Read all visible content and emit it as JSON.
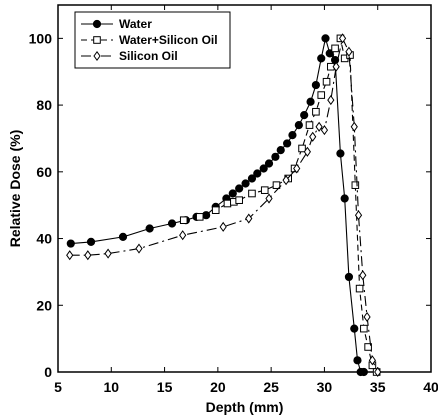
{
  "chart_data": {
    "type": "line",
    "title": "",
    "xlabel": "Depth (mm)",
    "ylabel": "Relative Dose (%)",
    "xlim": [
      5,
      40
    ],
    "ylim": [
      0,
      110
    ],
    "xticks": [
      5,
      10,
      15,
      20,
      25,
      30,
      35,
      40
    ],
    "yticks": [
      0,
      20,
      40,
      60,
      80,
      100
    ],
    "grid": false,
    "legend_position": "top-left",
    "series": [
      {
        "name": "Water",
        "line_style": "solid",
        "marker": "filled-circle",
        "x": [
          6.2,
          8.1,
          11.1,
          13.6,
          15.7,
          17.0,
          18.0,
          18.9,
          19.8,
          20.8,
          21.4,
          22.0,
          22.6,
          23.2,
          23.7,
          24.3,
          24.8,
          25.4,
          25.9,
          26.5,
          27.0,
          27.6,
          28.1,
          28.7,
          29.2,
          29.7,
          30.1,
          30.5,
          31.0,
          31.5,
          31.9,
          32.3,
          32.8,
          33.1,
          33.4,
          33.7
        ],
        "y": [
          38.5,
          39,
          40.5,
          43,
          44.5,
          45.5,
          46.5,
          47,
          49.5,
          52,
          53.5,
          55,
          56.5,
          58,
          59.5,
          61,
          62.5,
          64.5,
          66.5,
          68.5,
          71,
          74,
          77,
          81,
          86,
          94,
          100,
          95.5,
          93.5,
          65.5,
          52,
          28.5,
          13,
          3.5,
          0,
          0
        ]
      },
      {
        "name": "Water+Silicon Oil",
        "line_style": "dashed",
        "marker": "open-square",
        "x": [
          16.8,
          18.3,
          19.8,
          20.9,
          21.5,
          22.0,
          23.2,
          24.4,
          25.5,
          26.6,
          27.2,
          27.9,
          28.6,
          29.2,
          29.7,
          30.2,
          30.6,
          31.0,
          31.5,
          31.9,
          32.4,
          32.9,
          33.3,
          33.7,
          34.1,
          34.5,
          34.9
        ],
        "y": [
          45.5,
          46.5,
          48.5,
          50.5,
          51,
          51.5,
          53.5,
          54.5,
          56,
          58,
          61,
          67,
          74,
          78,
          83,
          87,
          91.5,
          97,
          100,
          94,
          95,
          56,
          25,
          13,
          7.5,
          2,
          0
        ]
      },
      {
        "name": "Silicon Oil",
        "line_style": "dash-dot",
        "marker": "open-diamond",
        "x": [
          6.1,
          7.8,
          9.7,
          12.6,
          16.7,
          20.5,
          22.9,
          24.8,
          26.4,
          27.4,
          28.4,
          28.9,
          29.5,
          30.0,
          30.6,
          31.1,
          31.7,
          32.3,
          32.8,
          33.2,
          33.6,
          34.0,
          34.5,
          35.0
        ],
        "y": [
          35,
          35,
          35.5,
          37,
          41,
          43.5,
          46,
          52,
          57.5,
          61,
          66,
          70.5,
          73.5,
          72.5,
          81.5,
          91.5,
          100,
          96,
          73.5,
          47,
          29,
          16.5,
          3.5,
          0
        ]
      }
    ]
  }
}
